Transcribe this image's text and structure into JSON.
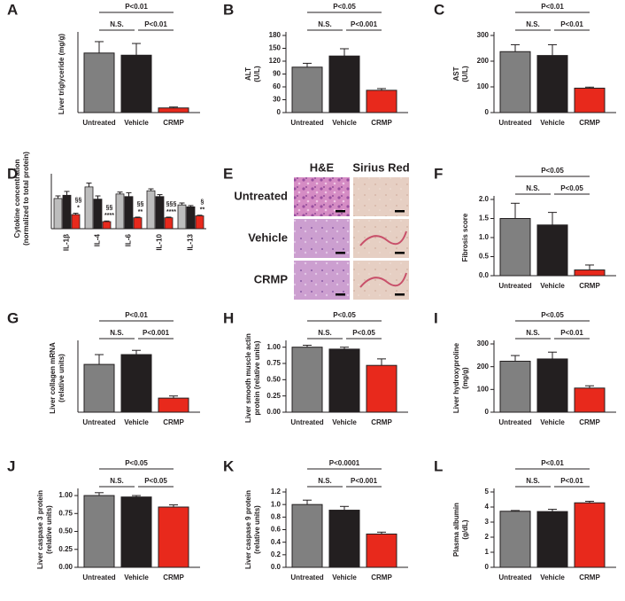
{
  "chart_data": [
    {
      "type": "bar",
      "label": "A",
      "ylabel": [
        "Liver triglyceride (mg/g)"
      ],
      "categories": [
        "Untreated",
        "Vehicle",
        "CRMP"
      ],
      "values": [
        193,
        186,
        15
      ],
      "errors": [
        37,
        38,
        3
      ],
      "colors": [
        "#808080",
        "#231f20",
        "#e8291c"
      ],
      "ylim": [
        0,
        250
      ],
      "yticks": [],
      "annotations": [
        "N.S.",
        "P<0.01",
        "P<0.01"
      ]
    },
    {
      "type": "bar",
      "label": "B",
      "ylabel": [
        "ALT",
        "(U/L)"
      ],
      "categories": [
        "Untreated",
        "Vehicle",
        "CRMP"
      ],
      "values": [
        106,
        132,
        52
      ],
      "errors": [
        9,
        17,
        4
      ],
      "colors": [
        "#808080",
        "#231f20",
        "#e8291c"
      ],
      "ylim": [
        0,
        180
      ],
      "yticks": [
        0,
        30,
        60,
        90,
        120,
        150,
        180
      ],
      "annotations": [
        "N.S.",
        "P<0.001",
        "P<0.05"
      ]
    },
    {
      "type": "bar",
      "label": "C",
      "ylabel": [
        "AST",
        "(U/L)"
      ],
      "categories": [
        "Untreated",
        "Vehicle",
        "CRMP"
      ],
      "values": [
        237,
        222,
        95
      ],
      "errors": [
        27,
        42,
        4
      ],
      "colors": [
        "#808080",
        "#231f20",
        "#e8291c"
      ],
      "ylim": [
        0,
        300
      ],
      "yticks": [
        0,
        100,
        200,
        300
      ],
      "annotations": [
        "N.S.",
        "P<0.01",
        "P<0.01"
      ]
    },
    {
      "type": "grouped-bar",
      "label": "D",
      "ylabel": [
        "Cytokine concentration",
        "(normalized to total protein)"
      ],
      "categories": [
        "IL-1β",
        "IL-4",
        "IL-6",
        "IL-10",
        "IL-13"
      ],
      "ylim": [
        0,
        0.8
      ],
      "series": [
        {
          "color": "#bdbdbd",
          "values": [
            0.47,
            0.65,
            0.54,
            0.59,
            0.37
          ],
          "errors": [
            0.04,
            0.06,
            0.03,
            0.03,
            0.03
          ]
        },
        {
          "color": "#231f20",
          "values": [
            0.52,
            0.46,
            0.5,
            0.5,
            0.34
          ],
          "errors": [
            0.06,
            0.05,
            0.06,
            0.03,
            0.02
          ]
        },
        {
          "color": "#e8291c",
          "values": [
            0.22,
            0.11,
            0.17,
            0.17,
            0.2
          ],
          "errors": [
            0.02,
            0.01,
            0.01,
            0.01,
            0.01
          ]
        }
      ],
      "annotations": [
        [
          "§§",
          "*"
        ],
        [
          "§§",
          "****"
        ],
        [
          "§§",
          "**"
        ],
        [
          "§§§",
          "****"
        ],
        [
          "§",
          "**"
        ]
      ]
    },
    {
      "type": "image-grid",
      "label": "E",
      "columns": [
        "H&E",
        "Sirius Red"
      ],
      "rows": [
        "Untreated",
        "Vehicle",
        "CRMP"
      ]
    },
    {
      "type": "bar",
      "label": "F",
      "ylabel": [
        "Fibrosis score"
      ],
      "categories": [
        "Untreated",
        "Vehicle",
        "CRMP"
      ],
      "values": [
        1.5,
        1.33,
        0.15
      ],
      "errors": [
        0.4,
        0.33,
        0.13
      ],
      "colors": [
        "#808080",
        "#231f20",
        "#e8291c"
      ],
      "ylim": [
        0,
        2
      ],
      "yticks": [
        {
          "value": 0,
          "label": "0.0"
        },
        0.5,
        {
          "value": 1,
          "label": "1.0"
        },
        1.5,
        {
          "value": 2,
          "label": "2.0"
        }
      ],
      "annotations": [
        "N.S.",
        "P<0.05",
        "P<0.05"
      ]
    },
    {
      "type": "bar",
      "label": "G",
      "ylabel": [
        "Liver collagen mRNA",
        "(relative units)"
      ],
      "categories": [
        "Untreated",
        "Vehicle",
        "CRMP"
      ],
      "values": [
        1.12,
        1.35,
        0.33
      ],
      "errors": [
        0.23,
        0.1,
        0.05
      ],
      "colors": [
        "#808080",
        "#231f20",
        "#e8291c"
      ],
      "ylim": [
        0,
        1.6
      ],
      "yticks": [],
      "annotations": [
        "N.S.",
        "P<0.001",
        "P<0.01"
      ]
    },
    {
      "type": "bar",
      "label": "H",
      "ylabel": [
        "Liver smooth muscle actin",
        "protein (relative units)"
      ],
      "categories": [
        "Untreated",
        "Vehicle",
        "CRMP"
      ],
      "values": [
        1.0,
        0.97,
        0.72
      ],
      "errors": [
        0.03,
        0.03,
        0.1
      ],
      "colors": [
        "#808080",
        "#231f20",
        "#e8291c"
      ],
      "ylim": [
        0,
        1.05
      ],
      "yticks": [
        {
          "value": 0,
          "label": "0.00"
        },
        {
          "value": 0.25,
          "label": "0.25"
        },
        {
          "value": 0.5,
          "label": "0.50"
        },
        {
          "value": 0.75,
          "label": "0.75"
        },
        {
          "value": 1,
          "label": "1.00"
        }
      ],
      "annotations": [
        "N.S.",
        "P<0.05",
        "P<0.05"
      ]
    },
    {
      "type": "bar",
      "label": "I",
      "ylabel": [
        "Liver hydroxyproline",
        "(mg/g)"
      ],
      "categories": [
        "Untreated",
        "Vehicle",
        "CRMP"
      ],
      "values": [
        224,
        234,
        106
      ],
      "errors": [
        25,
        30,
        10
      ],
      "colors": [
        "#808080",
        "#231f20",
        "#e8291c"
      ],
      "ylim": [
        0,
        300
      ],
      "yticks": [
        0,
        100,
        200,
        300
      ],
      "annotations": [
        "N.S.",
        "P<0.01",
        "P<0.05"
      ]
    },
    {
      "type": "bar",
      "label": "J",
      "ylabel": [
        "Liver caspase 3 protein",
        "(relative units)"
      ],
      "categories": [
        "Untreated",
        "Vehicle",
        "CRMP"
      ],
      "values": [
        1.0,
        0.98,
        0.84
      ],
      "errors": [
        0.04,
        0.02,
        0.03
      ],
      "colors": [
        "#808080",
        "#231f20",
        "#e8291c"
      ],
      "ylim": [
        0,
        1.05
      ],
      "yticks": [
        {
          "value": 0,
          "label": "0.00"
        },
        {
          "value": 0.25,
          "label": "0.25"
        },
        {
          "value": 0.5,
          "label": "0.50"
        },
        {
          "value": 0.75,
          "label": "0.75"
        },
        {
          "value": 1,
          "label": "1.00"
        }
      ],
      "annotations": [
        "N.S.",
        "P<0.05",
        "P<0.05"
      ]
    },
    {
      "type": "bar",
      "label": "K",
      "ylabel": [
        "Liver caspase 9 protein",
        "(relative units)"
      ],
      "categories": [
        "Untreated",
        "Vehicle",
        "CRMP"
      ],
      "values": [
        1.0,
        0.91,
        0.53
      ],
      "errors": [
        0.07,
        0.06,
        0.03
      ],
      "colors": [
        "#808080",
        "#231f20",
        "#e8291c"
      ],
      "ylim": [
        0,
        1.2
      ],
      "yticks": [
        {
          "value": 0,
          "label": "0.0"
        },
        0.2,
        0.4,
        0.6,
        0.8,
        {
          "value": 1,
          "label": "1.0"
        },
        1.2
      ],
      "annotations": [
        "N.S.",
        "P<0.001",
        "P<0.0001"
      ]
    },
    {
      "type": "bar",
      "label": "L",
      "ylabel": [
        "Plasma albumin",
        "(g/dL)"
      ],
      "categories": [
        "Untreated",
        "Vehicle",
        "CRMP"
      ],
      "values": [
        3.72,
        3.7,
        4.28
      ],
      "errors": [
        0.05,
        0.15,
        0.1
      ],
      "colors": [
        "#808080",
        "#231f20",
        "#e8291c"
      ],
      "ylim": [
        0,
        5
      ],
      "yticks": [
        0,
        1,
        2,
        3,
        4,
        5
      ],
      "annotations": [
        "N.S.",
        "P<0.01",
        "P<0.01"
      ]
    }
  ]
}
